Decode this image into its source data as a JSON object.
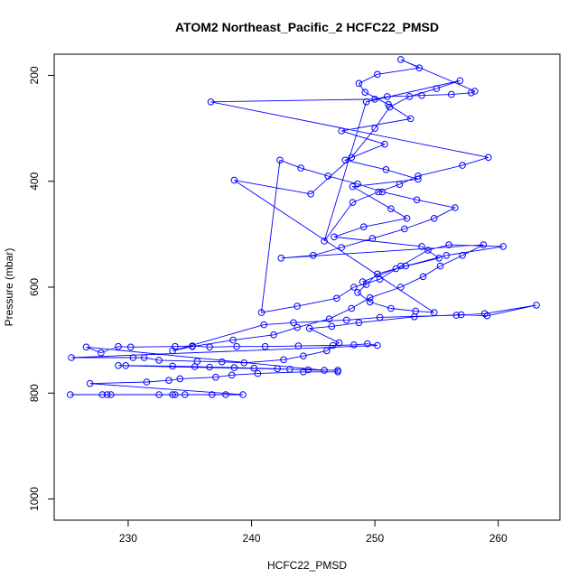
{
  "chart_data": {
    "type": "scatter",
    "title": "ATOM2 Northeast_Pacific_2 HCFC22_PMSD",
    "xlabel": "HCFC22_PMSD",
    "ylabel": "Pressure (mbar)",
    "xlim": [
      224,
      265
    ],
    "ylim": [
      1040,
      160
    ],
    "y_reversed": true,
    "xticks": [
      230,
      240,
      250,
      260
    ],
    "yticks": [
      200,
      400,
      600,
      800,
      1000
    ],
    "grid": false,
    "legend": "none",
    "color": "#0000ff",
    "marker": "open-circle",
    "connect_points": true,
    "x": [
      225.3,
      227.9,
      228.3,
      228.6,
      232.5,
      233.6,
      233.8,
      234.6,
      236.8,
      237.9,
      239.3,
      226.9,
      231.5,
      233.3,
      234.2,
      237.1,
      238.4,
      240.5,
      244.2,
      247.0,
      247.0,
      229.2,
      229.8,
      233.6,
      235.4,
      236.6,
      238.6,
      240.2,
      242.1,
      243.1,
      244.6,
      245.9,
      226.6,
      227.8,
      229.2,
      230.2,
      233.8,
      235.2,
      236.6,
      238.8,
      241.1,
      243.8,
      246.6,
      248.3,
      249.4,
      250.2,
      225.4,
      230.4,
      231.3,
      232.5,
      235.6,
      237.6,
      239.4,
      242.6,
      244.2,
      246.1,
      247.1,
      244.7,
      246.5,
      248.7,
      253.2,
      257.0,
      259.1,
      263.1,
      258.9,
      256.6,
      250.4,
      247.7,
      243.4,
      241.0,
      233.6,
      235.2,
      238.5,
      241.8,
      243.7,
      246.3,
      248.1,
      249.6,
      252.1,
      253.9,
      255.3,
      257.1,
      258.8,
      242.4,
      245.0,
      247.3,
      249.8,
      252.4,
      254.8,
      256.5,
      253.4,
      250.6,
      248.6,
      246.2,
      244.0,
      242.3,
      240.8,
      243.7,
      246.9,
      248.3,
      250.4,
      252.1,
      254.3,
      256.0,
      260.4,
      255.8,
      252.5,
      250.2,
      249.3,
      248.6,
      249.6,
      251.3,
      253.3,
      254.8,
      238.6,
      244.8,
      248.1,
      250.0,
      251.2,
      252.8,
      255.0,
      256.9,
      249.3,
      245.9,
      248.2,
      250.3,
      252.0,
      253.5,
      257.1,
      259.2,
      236.7,
      250.0,
      251.0,
      253.8,
      256.2,
      257.8,
      258.1,
      252.1,
      253.6,
      250.2,
      248.7,
      249.2,
      251.1,
      252.9,
      247.3,
      250.8,
      247.6,
      250.9,
      253.5,
      248.2,
      251.3,
      252.6,
      249.1,
      246.7,
      253.8,
      255.2,
      251.7,
      249.0
    ],
    "y": [
      803,
      803,
      803,
      803,
      803,
      803,
      803,
      803,
      803,
      803,
      803,
      782,
      779,
      776,
      773,
      770,
      766,
      763,
      760,
      760,
      757,
      748,
      748,
      749,
      750,
      751,
      752,
      753,
      754,
      755,
      756,
      757,
      713,
      724,
      712,
      713,
      712,
      711,
      713,
      712,
      712,
      711,
      710,
      709,
      707,
      710,
      733,
      733,
      733,
      738,
      740,
      741,
      743,
      737,
      730,
      720,
      705,
      678,
      674,
      667,
      656,
      652,
      654,
      634,
      650,
      653,
      657,
      662,
      667,
      671,
      720,
      712,
      700,
      690,
      676,
      660,
      640,
      620,
      600,
      580,
      560,
      540,
      520,
      545,
      540,
      525,
      508,
      490,
      470,
      450,
      435,
      420,
      405,
      390,
      375,
      360,
      648,
      636,
      621,
      600,
      585,
      560,
      530,
      520,
      523,
      540,
      560,
      575,
      595,
      610,
      628,
      640,
      645,
      648,
      398,
      424,
      355,
      300,
      260,
      240,
      225,
      210,
      250,
      513,
      440,
      420,
      406,
      390,
      370,
      355,
      250,
      245,
      240,
      238,
      236,
      233,
      230,
      170,
      186,
      198,
      215,
      232,
      255,
      282,
      305,
      330,
      360,
      378,
      396,
      410,
      452,
      470,
      486,
      505,
      523,
      545,
      565,
      590
    ]
  }
}
